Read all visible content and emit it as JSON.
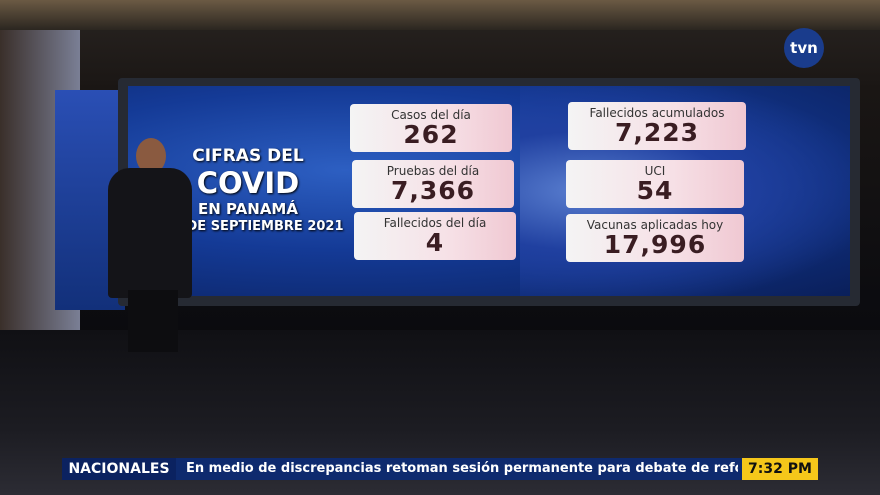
{
  "logo": "tvn",
  "title": {
    "line1": "CIFRAS DEL",
    "line2": "COVID",
    "line3": "EN PANAMÁ",
    "line4": "DE SEPTIEMBRE 2021"
  },
  "cards": [
    {
      "label": "Casos del día",
      "value": "262"
    },
    {
      "label": "Pruebas del día",
      "value": "7,366"
    },
    {
      "label": "Fallecidos del día",
      "value": "4"
    },
    {
      "label": "Fallecidos acumulados",
      "value": "7,223"
    },
    {
      "label": "UCI",
      "value": "54"
    },
    {
      "label": "Vacunas aplicadas hoy",
      "value": "17,996"
    }
  ],
  "ticker": {
    "section": "NACIONALES",
    "headline": "En medio de discrepancias retoman sesión permanente para debate de reformas electorales",
    "time": "7:32 PM"
  }
}
